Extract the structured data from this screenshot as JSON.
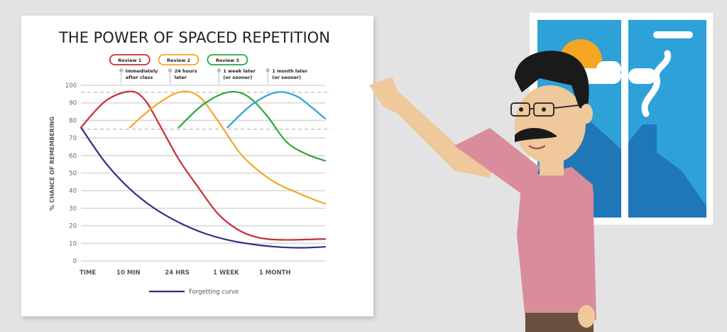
{
  "chart_data": {
    "type": "line",
    "title": "THE POWER OF SPACED REPETITION",
    "ylabel": "% CHANCE OF REMEMBERING",
    "ylim": [
      0,
      100
    ],
    "y_ticks": [
      "0",
      "10",
      "20",
      "30",
      "40",
      "50",
      "60",
      "70",
      "80",
      "90",
      "100"
    ],
    "x_tick_labels": [
      "TIME",
      "10 MIN",
      "24 HRS",
      "1 WEEK",
      "1 MONTH"
    ],
    "grid": true,
    "reference_lines": [
      96,
      75
    ],
    "series": [
      {
        "name": "Forgetting curve",
        "color": "#2b3187",
        "points": [
          [
            0,
            76
          ],
          [
            5,
            56
          ],
          [
            10,
            41
          ],
          [
            15,
            30
          ],
          [
            20,
            22
          ],
          [
            25,
            16
          ],
          [
            30,
            12
          ],
          [
            35,
            9.5
          ],
          [
            40,
            8
          ],
          [
            45,
            7.5
          ],
          [
            50,
            8
          ]
        ]
      },
      {
        "name": "",
        "color": "#c62f35",
        "points": [
          [
            0,
            76
          ],
          [
            5,
            91
          ],
          [
            10,
            96.5
          ],
          [
            13,
            92
          ],
          [
            16,
            78
          ],
          [
            20,
            58
          ],
          [
            24,
            42
          ],
          [
            28,
            27
          ],
          [
            32,
            18
          ],
          [
            36,
            13.5
          ],
          [
            41,
            12
          ],
          [
            50,
            12.5
          ]
        ]
      },
      {
        "name": "",
        "color": "#f5a623",
        "points": [
          [
            10,
            76
          ],
          [
            15,
            88
          ],
          [
            20,
            96
          ],
          [
            24,
            94
          ],
          [
            28,
            80
          ],
          [
            33,
            60
          ],
          [
            39,
            46
          ],
          [
            45,
            38
          ],
          [
            50,
            32.5
          ]
        ]
      },
      {
        "name": "",
        "color": "#2ea73b",
        "points": [
          [
            20,
            76
          ],
          [
            25,
            89
          ],
          [
            30,
            96
          ],
          [
            34,
            94
          ],
          [
            38,
            83
          ],
          [
            42,
            68
          ],
          [
            46,
            61
          ],
          [
            50,
            57
          ]
        ]
      },
      {
        "name": "",
        "color": "#2ea1d8",
        "points": [
          [
            30,
            76
          ],
          [
            35,
            89
          ],
          [
            40,
            96
          ],
          [
            44,
            94
          ],
          [
            47,
            88
          ],
          [
            50,
            81
          ]
        ]
      }
    ],
    "legend": {
      "position": "bottom"
    }
  },
  "reviews": [
    {
      "label": "Review 1",
      "color": "#c62f35",
      "note": [
        "Immediately",
        "after class"
      ]
    },
    {
      "label": "Review 2",
      "color": "#f5a623",
      "note": [
        "24 hours",
        "later"
      ]
    },
    {
      "label": "Review 3",
      "color": "#2ea73b",
      "note": [
        "1 week later",
        "(or sooner)"
      ]
    },
    {
      "label": "",
      "color": "#9a9a9a",
      "note": [
        "1 month later",
        "(or sooner)"
      ]
    }
  ],
  "colors": {
    "board": "#ffffff",
    "background": "#e3e3e3",
    "window_sky": "#2ea1d8",
    "shirt": "#d98c9c"
  },
  "illustration": {
    "character": "teacher with glasses and mustache pointing at chart",
    "window": "window with sun, cloud and chimney smoke"
  }
}
